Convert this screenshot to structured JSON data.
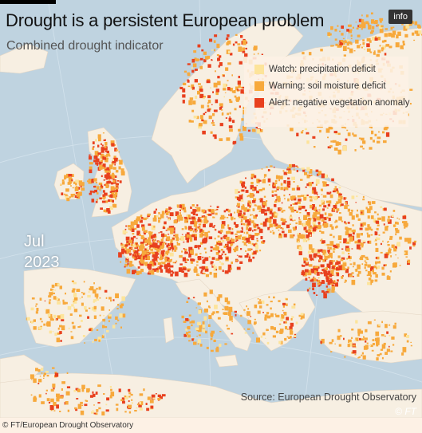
{
  "header": {
    "title": "Drought is a persistent European problem",
    "subtitle": "Combined drought indicator",
    "info_label": "info"
  },
  "legend": {
    "items": [
      {
        "label": "Watch: precipitation deficit",
        "color": "#fde49a"
      },
      {
        "label": "Warning: soil moisture deficit",
        "color": "#f7a93c"
      },
      {
        "label": "Alert: negative vegetation anomaly",
        "color": "#e8401e"
      }
    ]
  },
  "date": {
    "month": "Jul",
    "year": "2023"
  },
  "footer": {
    "source": "Source: European Drought Observatory",
    "ft_mark": "© FT",
    "copyright": "© FT/European Drought Observatory"
  },
  "colors": {
    "sea": "#bfd3e0",
    "land": "#f7efe2",
    "watch": "#fde49a",
    "warning": "#f7a93c",
    "alert": "#e8401e"
  }
}
